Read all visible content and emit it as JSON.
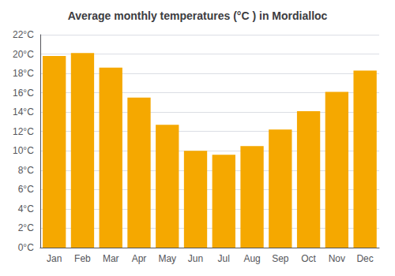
{
  "chart_data": {
    "type": "bar",
    "title": "Average monthly temperatures (°C ) in Mordialloc",
    "categories": [
      "Jan",
      "Feb",
      "Mar",
      "Apr",
      "May",
      "Jun",
      "Jul",
      "Aug",
      "Sep",
      "Oct",
      "Nov",
      "Dec"
    ],
    "values": [
      19.8,
      20.1,
      18.6,
      15.5,
      12.7,
      10.0,
      9.6,
      10.5,
      12.2,
      14.1,
      16.1,
      18.3
    ],
    "color": "#F5A800",
    "ylim": [
      0,
      22
    ],
    "yticks": [
      {
        "value": 0,
        "label": "0°C"
      },
      {
        "value": 2,
        "label": "2°C"
      },
      {
        "value": 4,
        "label": "4°C"
      },
      {
        "value": 6,
        "label": "6°C"
      },
      {
        "value": 8,
        "label": "8°C"
      },
      {
        "value": 10,
        "label": "10°C"
      },
      {
        "value": 12,
        "label": "12°C"
      },
      {
        "value": 14,
        "label": "14°C"
      },
      {
        "value": 16,
        "label": "16°C"
      },
      {
        "value": 18,
        "label": "18°C"
      },
      {
        "value": 20,
        "label": "20°C"
      },
      {
        "value": 22,
        "label": "22°C"
      }
    ],
    "grid": true
  }
}
